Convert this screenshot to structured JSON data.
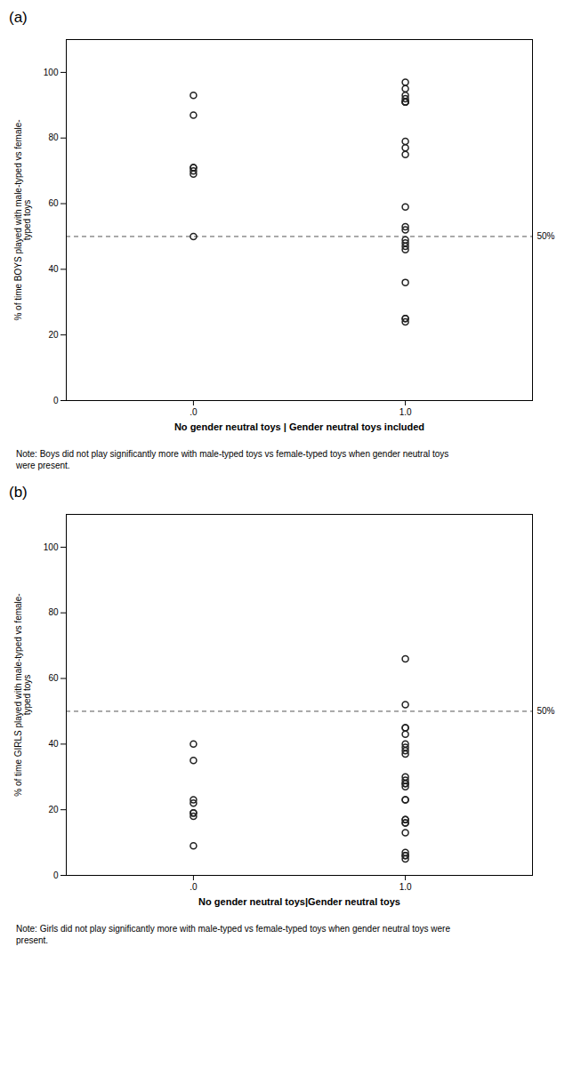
{
  "chart_data": [
    {
      "type": "scatter",
      "title": "(a)",
      "x": [
        0,
        0,
        0,
        0,
        0,
        0,
        0,
        1,
        1,
        1,
        1,
        1,
        1,
        1,
        1,
        1,
        1,
        1,
        1,
        1,
        1,
        1,
        1,
        1,
        1,
        1,
        1,
        1
      ],
      "values": [
        93,
        87,
        71,
        71,
        70,
        69,
        50,
        97,
        95,
        93,
        92,
        91,
        91,
        91,
        79,
        77,
        75,
        59,
        53,
        52,
        49,
        48,
        47,
        46,
        36,
        25,
        25,
        24
      ],
      "xlabel": "No gender neutral toys | Gender neutral toys included",
      "ylabel": "% of time BOYS played with male-typed vs female-\ntyped toys",
      "xlim": [
        -0.6,
        1.6
      ],
      "xticks": [
        {
          "value": 0,
          "label": ".0"
        },
        {
          "value": 1,
          "label": "1.0"
        }
      ],
      "ylim": [
        0,
        110
      ],
      "yticks": [
        0,
        20,
        40,
        60,
        80,
        100
      ],
      "color": "#222222",
      "marker": "open_circle",
      "grid": false,
      "annotations": [
        {
          "type": "hline",
          "y": 50,
          "label": "50%",
          "color": "#555555",
          "line_style": "dashed"
        }
      ],
      "caption": "Note: Boys did not play significantly more with male-typed toys vs female-typed toys when gender neutral toys\nwere present."
    },
    {
      "type": "scatter",
      "title": "(b)",
      "x": [
        0,
        0,
        0,
        0,
        0,
        0,
        0,
        0,
        1,
        1,
        1,
        1,
        1,
        1,
        1,
        1,
        1,
        1,
        1,
        1,
        1,
        1,
        1,
        1,
        1,
        1,
        1,
        1,
        1,
        1,
        1,
        1,
        1
      ],
      "values": [
        40,
        35,
        23,
        22,
        19,
        19,
        18,
        9,
        66,
        52,
        45,
        45,
        43,
        40,
        39,
        38,
        37,
        30,
        29,
        28,
        28,
        27,
        23,
        23,
        17,
        17,
        16,
        16,
        13,
        7,
        6,
        6,
        5
      ],
      "xlabel": "No gender neutral toys|Gender neutral toys",
      "ylabel": "% of time GIRLS played with male-typed vs female-\ntyped toys",
      "xlim": [
        -0.6,
        1.6
      ],
      "xticks": [
        {
          "value": 0,
          "label": ".0"
        },
        {
          "value": 1,
          "label": "1.0"
        }
      ],
      "ylim": [
        0,
        110
      ],
      "yticks": [
        0,
        20,
        40,
        60,
        80,
        100
      ],
      "color": "#222222",
      "marker": "open_circle",
      "grid": false,
      "annotations": [
        {
          "type": "hline",
          "y": 50,
          "label": "50%",
          "color": "#555555",
          "line_style": "dashed"
        }
      ],
      "caption": "Note: Girls did not play significantly more with male-typed vs female-typed toys when gender neutral toys were\npresent."
    }
  ]
}
